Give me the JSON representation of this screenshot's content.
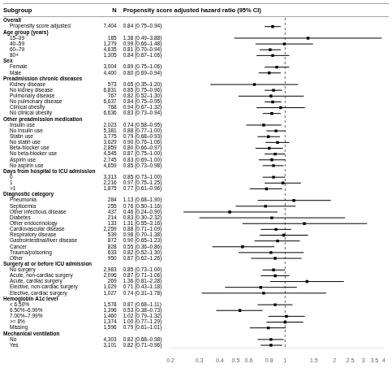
{
  "chart_data": {
    "type": "forest",
    "columns": [
      "Subgroup",
      "N",
      "Propensity score adjusted hazard ratio (95% CI)"
    ],
    "categories": [
      "Overall",
      "Propensity score adjusted",
      "Age group (years)",
      "15–39",
      "40–59",
      "60–79",
      "80+",
      "Sex",
      "Female",
      "Male",
      "Preadmission chronic diseases",
      "Kidney disease",
      "No kidney disease",
      "Pulmonary disease",
      "No pulmonary disease",
      "Clinical obesity",
      "No clinical obesity",
      "Other preadmission medication",
      "Insulin use",
      "No insulin use",
      "Statin use",
      "No statin use",
      "Beta-blocker use",
      "No beta-blocker use",
      "Aspirin use",
      "No aspirin use",
      "Days from hospital to ICU admission",
      "0",
      "1",
      ">1",
      "Diagnostic category",
      "Pneumonia",
      "Septicemia",
      "Other infectious disease",
      "Diabetes",
      "Other endocrinology",
      "Cardiovascular disease",
      "Respiratory disease",
      "Gastrointestinal/liver disease",
      "Cancer",
      "Trauma/poisoning",
      "Other",
      "Surgery at or before ICU admission",
      "No surgery",
      "Acute, non-cardiac surgery",
      "Acute, cardiac surgery",
      "Elective, non-cardiac surgery",
      "Elective, cardiac surgery",
      "Hemoglobin A1c level",
      "< 6.50%",
      "6.50%–6.99%",
      "7.00%–7.99%",
      ">= 8%",
      "Missing",
      "Mechanical ventilation",
      "No",
      "Yes"
    ],
    "values": [
      null,
      0.84,
      null,
      1.38,
      0.99,
      0.81,
      0.84,
      null,
      0.89,
      0.8,
      null,
      0.65,
      0.85,
      0.82,
      0.84,
      0.94,
      0.83,
      null,
      0.74,
      0.88,
      0.79,
      0.9,
      0.8,
      0.87,
      0.83,
      0.85,
      null,
      0.85,
      0.97,
      0.77,
      null,
      1.13,
      0.76,
      0.46,
      0.83,
      1.31,
      0.88,
      0.98,
      0.9,
      0.55,
      0.82,
      0.87,
      null,
      0.85,
      0.87,
      1.36,
      0.71,
      0.74,
      null,
      0.87,
      0.53,
      1.02,
      1.0,
      0.79,
      null,
      0.82,
      0.82
    ],
    "lo": [
      null,
      0.75,
      null,
      0.49,
      0.66,
      0.7,
      0.67,
      null,
      0.75,
      0.69,
      null,
      0.35,
      0.75,
      0.52,
      0.75,
      0.67,
      0.73,
      null,
      0.58,
      0.77,
      0.68,
      0.76,
      0.66,
      0.75,
      0.69,
      0.73,
      null,
      0.73,
      0.75,
      0.61,
      null,
      0.68,
      0.5,
      0.24,
      0.3,
      0.55,
      0.71,
      0.7,
      0.65,
      0.36,
      0.52,
      0.62,
      null,
      0.73,
      0.71,
      0.81,
      0.43,
      0.31,
      null,
      0.68,
      0.38,
      0.79,
      0.77,
      0.61,
      null,
      0.68,
      0.71
    ],
    "hi": [
      null,
      0.94,
      null,
      3.88,
      1.48,
      0.94,
      1.06,
      null,
      1.06,
      0.94,
      null,
      1.2,
      0.96,
      1.3,
      0.95,
      1.32,
      0.94,
      null,
      0.95,
      1.0,
      0.93,
      1.06,
      0.97,
      1.0,
      1.0,
      0.98,
      null,
      1.0,
      1.25,
      0.96,
      null,
      1.9,
      1.16,
      0.9,
      2.32,
      3.16,
      1.09,
      1.38,
      1.23,
      0.86,
      1.3,
      1.26,
      null,
      1.0,
      1.06,
      2.28,
      1.18,
      1.78,
      null,
      1.11,
      0.73,
      1.32,
      1.29,
      1.01,
      null,
      0.98,
      0.96
    ],
    "n": [
      null,
      {
        "value": 7404,
        "label": "7,404"
      },
      null,
      185,
      {
        "value": 1279,
        "label": "1,279"
      },
      {
        "value": 4635,
        "label": "4,635"
      },
      {
        "value": 1305,
        "label": "1,305"
      },
      null,
      {
        "value": 3004,
        "label": "3,004"
      },
      {
        "value": 4400,
        "label": "4,400"
      },
      null,
      573,
      {
        "value": 6831,
        "label": "6,831"
      },
      767,
      {
        "value": 6637,
        "label": "6,637"
      },
      768,
      {
        "value": 6636,
        "label": "6,636"
      },
      null,
      {
        "value": 2023,
        "label": "2,023"
      },
      {
        "value": 5381,
        "label": "5,381"
      },
      {
        "value": 3775,
        "label": "3,775"
      },
      {
        "value": 3629,
        "label": "3,629"
      },
      {
        "value": 2859,
        "label": "2,859"
      },
      {
        "value": 4545,
        "label": "4,545"
      },
      {
        "value": 2745,
        "label": "2,745"
      },
      {
        "value": 4659,
        "label": "4,659"
      },
      null,
      {
        "value": 3313,
        "label": "3,313"
      },
      {
        "value": 2216,
        "label": "2,216"
      },
      {
        "value": 1875,
        "label": "1,875"
      },
      null,
      284,
      255,
      437,
      214,
      133,
      {
        "value": 2259,
        "label": "2,259"
      },
      539,
      872,
      828,
      633,
      950,
      null,
      {
        "value": 2983,
        "label": "2,983"
      },
      {
        "value": 2096,
        "label": "2,096"
      },
      269,
      {
        "value": 1029,
        "label": "1,029"
      },
      {
        "value": 1027,
        "label": "1,027"
      },
      null,
      {
        "value": 1578,
        "label": "1,578"
      },
      {
        "value": 1396,
        "label": "1,396"
      },
      {
        "value": 1460,
        "label": "1,460"
      },
      {
        "value": 1374,
        "label": "1,374"
      },
      {
        "value": 1596,
        "label": "1,596"
      },
      null,
      {
        "value": 4303,
        "label": "4,303"
      },
      {
        "value": 3101,
        "label": "3,101"
      }
    ],
    "value_labels": [
      null,
      "0.84 (0.75–0.94)",
      null,
      "1.38 (0.49–3.88)",
      "0.99 (0.66–1.48)",
      "0.81 (0.70–0.94)",
      "0.84 (0.67–1.06)",
      null,
      "0.89 (0.75–1.06)",
      "0.80 (0.69–0.94)",
      null,
      "0.65 (0.35–1.20)",
      "0.85 (0.75–0.96)",
      "0.82 (0.52–1.30)",
      "0.84 (0.75–0.95)",
      "0.94 (0.67–1.32)",
      "0.83 (0.73–0.94)",
      null,
      "0.74 (0.58–0.95)",
      "0.88 (0.77–1.00)",
      "0.79 (0.68–0.93)",
      "0.90 (0.76–1.06)",
      "0.80 (0.66–0.97)",
      "0.87 (0.75–1.00)",
      "0.83 (0.69–1.00)",
      "0.85 (0.73–0.98)",
      null,
      "0.85 (0.73–1.00)",
      "0.97 (0.75–1.25)",
      "0.77 (0.61–0.96)",
      null,
      "1.13 (0.68–1.90)",
      "0.76 (0.50–1.16)",
      "0.46 (0.24–0.90)",
      "0.83 (0.30–2.32)",
      "1.31 (0.55–3.16)",
      "0.88 (0.71–1.09)",
      "0.98 (0.70–1.38)",
      "0.90 (0.65–1.23)",
      "0.55 (0.36–0.86)",
      "0.82 (0.52–1.30)",
      "0.87 (0.62–1.26)",
      null,
      "0.85 (0.73–1.00)",
      "0.87 (0.71–1.06)",
      "1.36 (0.81–2.28)",
      "0.71 (0.43–1.18)",
      "0.74 (0.31–1.78)",
      null,
      "0.87 (0.68–1.11)",
      "0.53 (0.38–0.73)",
      "1.02 (0.79–1.32)",
      "1.00 (0.77–1.29)",
      "0.79 (0.61–1.01)",
      null,
      "0.82 (0.68–0.98)",
      "0.82 (0.71–0.96)"
    ],
    "xlim": [
      0.2,
      4
    ],
    "xticks": [
      0.2,
      0.3,
      0.4,
      0.5,
      0.6,
      0.8,
      1,
      1.5,
      2,
      2.5,
      3,
      3.5,
      4
    ],
    "log": "x",
    "grid": false,
    "reference_line": 1,
    "color": "black"
  }
}
